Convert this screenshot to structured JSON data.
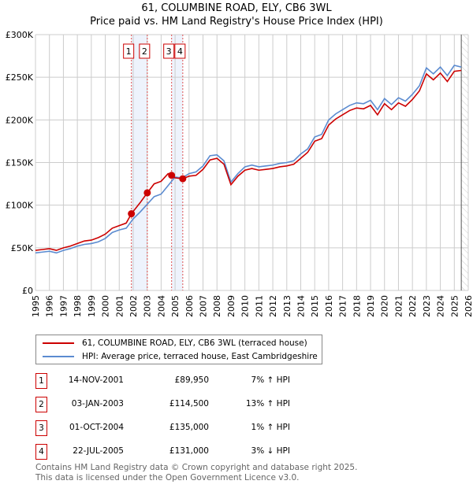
{
  "title": "61, COLUMBINE ROAD, ELY, CB6 3WL",
  "subtitle": "Price paid vs. HM Land Registry's House Price Index (HPI)",
  "chart_data": {
    "type": "line",
    "xlim": [
      1995,
      2026
    ],
    "ylim": [
      0,
      300000
    ],
    "ytick_labels": [
      "£0",
      "£50K",
      "£100K",
      "£150K",
      "£200K",
      "£250K",
      "£300K"
    ],
    "yticks": [
      0,
      50000,
      100000,
      150000,
      200000,
      250000,
      300000
    ],
    "xticks": [
      1995,
      1996,
      1997,
      1998,
      1999,
      2000,
      2001,
      2002,
      2003,
      2004,
      2005,
      2006,
      2007,
      2008,
      2009,
      2010,
      2011,
      2012,
      2013,
      2014,
      2015,
      2016,
      2017,
      2018,
      2019,
      2020,
      2021,
      2022,
      2023,
      2024,
      2025,
      2026
    ],
    "series": [
      {
        "name": "61, COLUMBINE ROAD, ELY, CB6 3WL (terraced house)",
        "color": "#cc0000",
        "x": [
          1995,
          1995.5,
          1996,
          1996.5,
          1997,
          1997.5,
          1998,
          1998.5,
          1999,
          1999.5,
          2000,
          2000.5,
          2001,
          2001.5,
          2001.87,
          2002.5,
          2003.01,
          2003.5,
          2004,
          2004.5,
          2004.75,
          2005,
          2005.55,
          2006,
          2006.5,
          2007,
          2007.5,
          2008,
          2008.5,
          2009,
          2009.5,
          2010,
          2010.5,
          2011,
          2011.5,
          2012,
          2012.5,
          2013,
          2013.5,
          2014,
          2014.5,
          2015,
          2015.5,
          2016,
          2016.5,
          2017,
          2017.5,
          2018,
          2018.5,
          2019,
          2019.5,
          2020,
          2020.5,
          2021,
          2021.5,
          2022,
          2022.5,
          2023,
          2023.5,
          2024,
          2024.5,
          2025,
          2025.5
        ],
        "y": [
          47000,
          48000,
          49000,
          47000,
          50000,
          52000,
          55000,
          58000,
          59000,
          62000,
          66000,
          73000,
          76000,
          79000,
          89950,
          103000,
          114500,
          125000,
          128000,
          137000,
          135000,
          132000,
          131000,
          134000,
          135000,
          142000,
          153000,
          155000,
          148000,
          124000,
          134000,
          141000,
          143000,
          141000,
          142000,
          143000,
          145000,
          146000,
          148000,
          155000,
          162000,
          175000,
          178000,
          194000,
          201000,
          206000,
          211000,
          214000,
          213000,
          217000,
          206000,
          219000,
          212000,
          220000,
          216000,
          224000,
          234000,
          254000,
          247000,
          255000,
          245000,
          257000,
          258000
        ]
      },
      {
        "name": "HPI: Average price, terraced house, East Cambridgeshire",
        "color": "#5b8bd0",
        "x": [
          1995,
          1995.5,
          1996,
          1996.5,
          1997,
          1997.5,
          1998,
          1998.5,
          1999,
          1999.5,
          2000,
          2000.5,
          2001,
          2001.5,
          2002,
          2002.5,
          2003,
          2003.5,
          2004,
          2004.5,
          2005,
          2005.5,
          2006,
          2006.5,
          2007,
          2007.5,
          2008,
          2008.5,
          2009,
          2009.5,
          2010,
          2010.5,
          2011,
          2011.5,
          2012,
          2012.5,
          2013,
          2013.5,
          2014,
          2014.5,
          2015,
          2015.5,
          2016,
          2016.5,
          2017,
          2017.5,
          2018,
          2018.5,
          2019,
          2019.5,
          2020,
          2020.5,
          2021,
          2021.5,
          2022,
          2022.5,
          2023,
          2023.5,
          2024,
          2024.5,
          2025,
          2025.5
        ],
        "y": [
          44000,
          45000,
          46000,
          44000,
          47000,
          49000,
          52000,
          54000,
          55000,
          57000,
          61000,
          68000,
          71000,
          73000,
          84000,
          92000,
          101000,
          110000,
          113000,
          123000,
          133000,
          132000,
          137000,
          139000,
          146000,
          158000,
          159000,
          152000,
          127000,
          137000,
          145000,
          147000,
          145000,
          146000,
          147000,
          149000,
          150000,
          152000,
          160000,
          166000,
          180000,
          183000,
          200000,
          207000,
          212000,
          217000,
          220000,
          219000,
          223000,
          212000,
          225000,
          218000,
          226000,
          222000,
          230000,
          240000,
          261000,
          254000,
          262000,
          252000,
          264000,
          262000
        ]
      }
    ],
    "sales": [
      {
        "label": "1",
        "x": 2001.87,
        "price": 89950
      },
      {
        "label": "2",
        "x": 2003.01,
        "price": 114500
      },
      {
        "label": "3",
        "x": 2004.75,
        "price": 135000
      },
      {
        "label": "4",
        "x": 2005.55,
        "price": 131000
      }
    ],
    "shaded_ranges": [
      [
        2001.87,
        2003.01
      ],
      [
        2004.75,
        2005.55
      ]
    ],
    "forecast_start": 2025.5
  },
  "legend": [
    {
      "label": "61, COLUMBINE ROAD, ELY, CB6 3WL (terraced house)",
      "color": "#cc0000"
    },
    {
      "label": "HPI: Average price, terraced house, East Cambridgeshire",
      "color": "#5b8bd0"
    }
  ],
  "transactions": [
    {
      "num": "1",
      "date": "14-NOV-2001",
      "price": "£89,950",
      "change": "7% ↑ HPI"
    },
    {
      "num": "2",
      "date": "03-JAN-2003",
      "price": "£114,500",
      "change": "13% ↑ HPI"
    },
    {
      "num": "3",
      "date": "01-OCT-2004",
      "price": "£135,000",
      "change": "1% ↑ HPI"
    },
    {
      "num": "4",
      "date": "22-JUL-2005",
      "price": "£131,000",
      "change": "3% ↓ HPI"
    }
  ],
  "footer": [
    "Contains HM Land Registry data © Crown copyright and database right 2025.",
    "This data is licensed under the Open Government Licence v3.0."
  ]
}
